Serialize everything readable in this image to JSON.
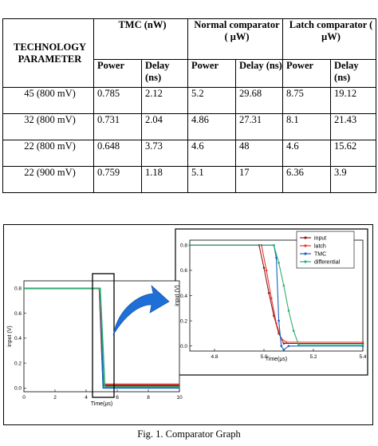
{
  "table": {
    "header": {
      "technology": "TECHNOLOGY PARAMETER",
      "tmc": "TMC (nW)",
      "normal": "Normal comparator ( μW)",
      "latch": "Latch comparator ( μW)",
      "power": "Power",
      "delay": "Delay (ns)"
    },
    "rows": [
      {
        "tech": "45 (800 mV)",
        "tmc_power": "0.785",
        "tmc_delay": "2.12",
        "normal_power": "5.2",
        "normal_delay": "29.68",
        "latch_power": "8.75",
        "latch_delay": "19.12"
      },
      {
        "tech": "32 (800 mV)",
        "tmc_power": "0.731",
        "tmc_delay": "2.04",
        "normal_power": "4.86",
        "normal_delay": "27.31",
        "latch_power": "8.1",
        "latch_delay": "21.43"
      },
      {
        "tech": "22 (800 mV)",
        "tmc_power": "0.648",
        "tmc_delay": "3.73",
        "normal_power": "4.6",
        "normal_delay": "48",
        "latch_power": "4.6",
        "latch_delay": "15.62"
      },
      {
        "tech": "22 (900 mV)",
        "tmc_power": "0.759",
        "tmc_delay": "1.18",
        "normal_power": "5.1",
        "normal_delay": "17",
        "latch_power": "6.36",
        "latch_delay": "3.9"
      }
    ]
  },
  "chart_data": [
    {
      "type": "line",
      "title": "",
      "xlabel": "Time(μs)",
      "ylabel": "input (V)",
      "xlim": [
        0,
        10
      ],
      "ylim": [
        -0.03,
        0.86
      ],
      "xticks": [
        "0",
        "2",
        "4",
        "6",
        "8",
        "10"
      ],
      "yticks": [
        "0.0",
        "0.2",
        "0.4",
        "0.6",
        "0.8"
      ],
      "series": [
        {
          "name": "input",
          "color": "#8b1a1a",
          "x": [
            0,
            4.85,
            5.0,
            5.1,
            10
          ],
          "y": [
            0.8,
            0.8,
            0.3,
            0.02,
            0.02
          ]
        },
        {
          "name": "latch",
          "color": "#e53935",
          "x": [
            0,
            4.85,
            5.05,
            5.1,
            10
          ],
          "y": [
            0.8,
            0.8,
            0.2,
            0.03,
            0.03
          ]
        },
        {
          "name": "TMC",
          "color": "#1565c0",
          "x": [
            0,
            4.9,
            5.08,
            5.1,
            10
          ],
          "y": [
            0.8,
            0.8,
            0.05,
            0.0,
            0.0
          ]
        },
        {
          "name": "differential",
          "color": "#2eaf6e",
          "x": [
            0,
            4.9,
            5.1,
            5.2,
            10
          ],
          "y": [
            0.8,
            0.8,
            0.3,
            0.01,
            0.01
          ]
        }
      ]
    },
    {
      "type": "line",
      "title": "",
      "xlabel": "Time(μs)",
      "ylabel": "input (V)",
      "xlim": [
        4.7,
        5.4
      ],
      "ylim": [
        -0.04,
        0.84
      ],
      "xticks": [
        "4.8",
        "5.0",
        "5.2",
        "5.4"
      ],
      "yticks": [
        "0.0",
        "0.2",
        "0.4",
        "0.6",
        "0.8"
      ],
      "legend": "top-right",
      "series": [
        {
          "name": "input",
          "color": "#8b1a1a",
          "x": [
            4.7,
            4.98,
            5.0,
            5.02,
            5.04,
            5.06,
            5.08,
            5.4
          ],
          "y": [
            0.8,
            0.8,
            0.62,
            0.42,
            0.24,
            0.1,
            0.02,
            0.02
          ]
        },
        {
          "name": "latch",
          "color": "#e53935",
          "x": [
            4.7,
            4.99,
            5.01,
            5.03,
            5.05,
            5.07,
            5.09,
            5.4
          ],
          "y": [
            0.8,
            0.8,
            0.6,
            0.38,
            0.18,
            0.06,
            0.03,
            0.03
          ]
        },
        {
          "name": "TMC",
          "color": "#1565c0",
          "x": [
            4.7,
            5.04,
            5.05,
            5.06,
            5.07,
            5.08,
            5.1,
            5.4
          ],
          "y": [
            0.8,
            0.8,
            0.7,
            0.2,
            0.0,
            -0.03,
            0.0,
            0.0
          ]
        },
        {
          "name": "differential",
          "color": "#2eaf6e",
          "x": [
            4.7,
            5.04,
            5.06,
            5.08,
            5.1,
            5.12,
            5.14,
            5.4
          ],
          "y": [
            0.8,
            0.8,
            0.66,
            0.48,
            0.28,
            0.12,
            0.01,
            0.01
          ]
        }
      ]
    }
  ],
  "caption": "Fig. 1. Comparator Graph"
}
